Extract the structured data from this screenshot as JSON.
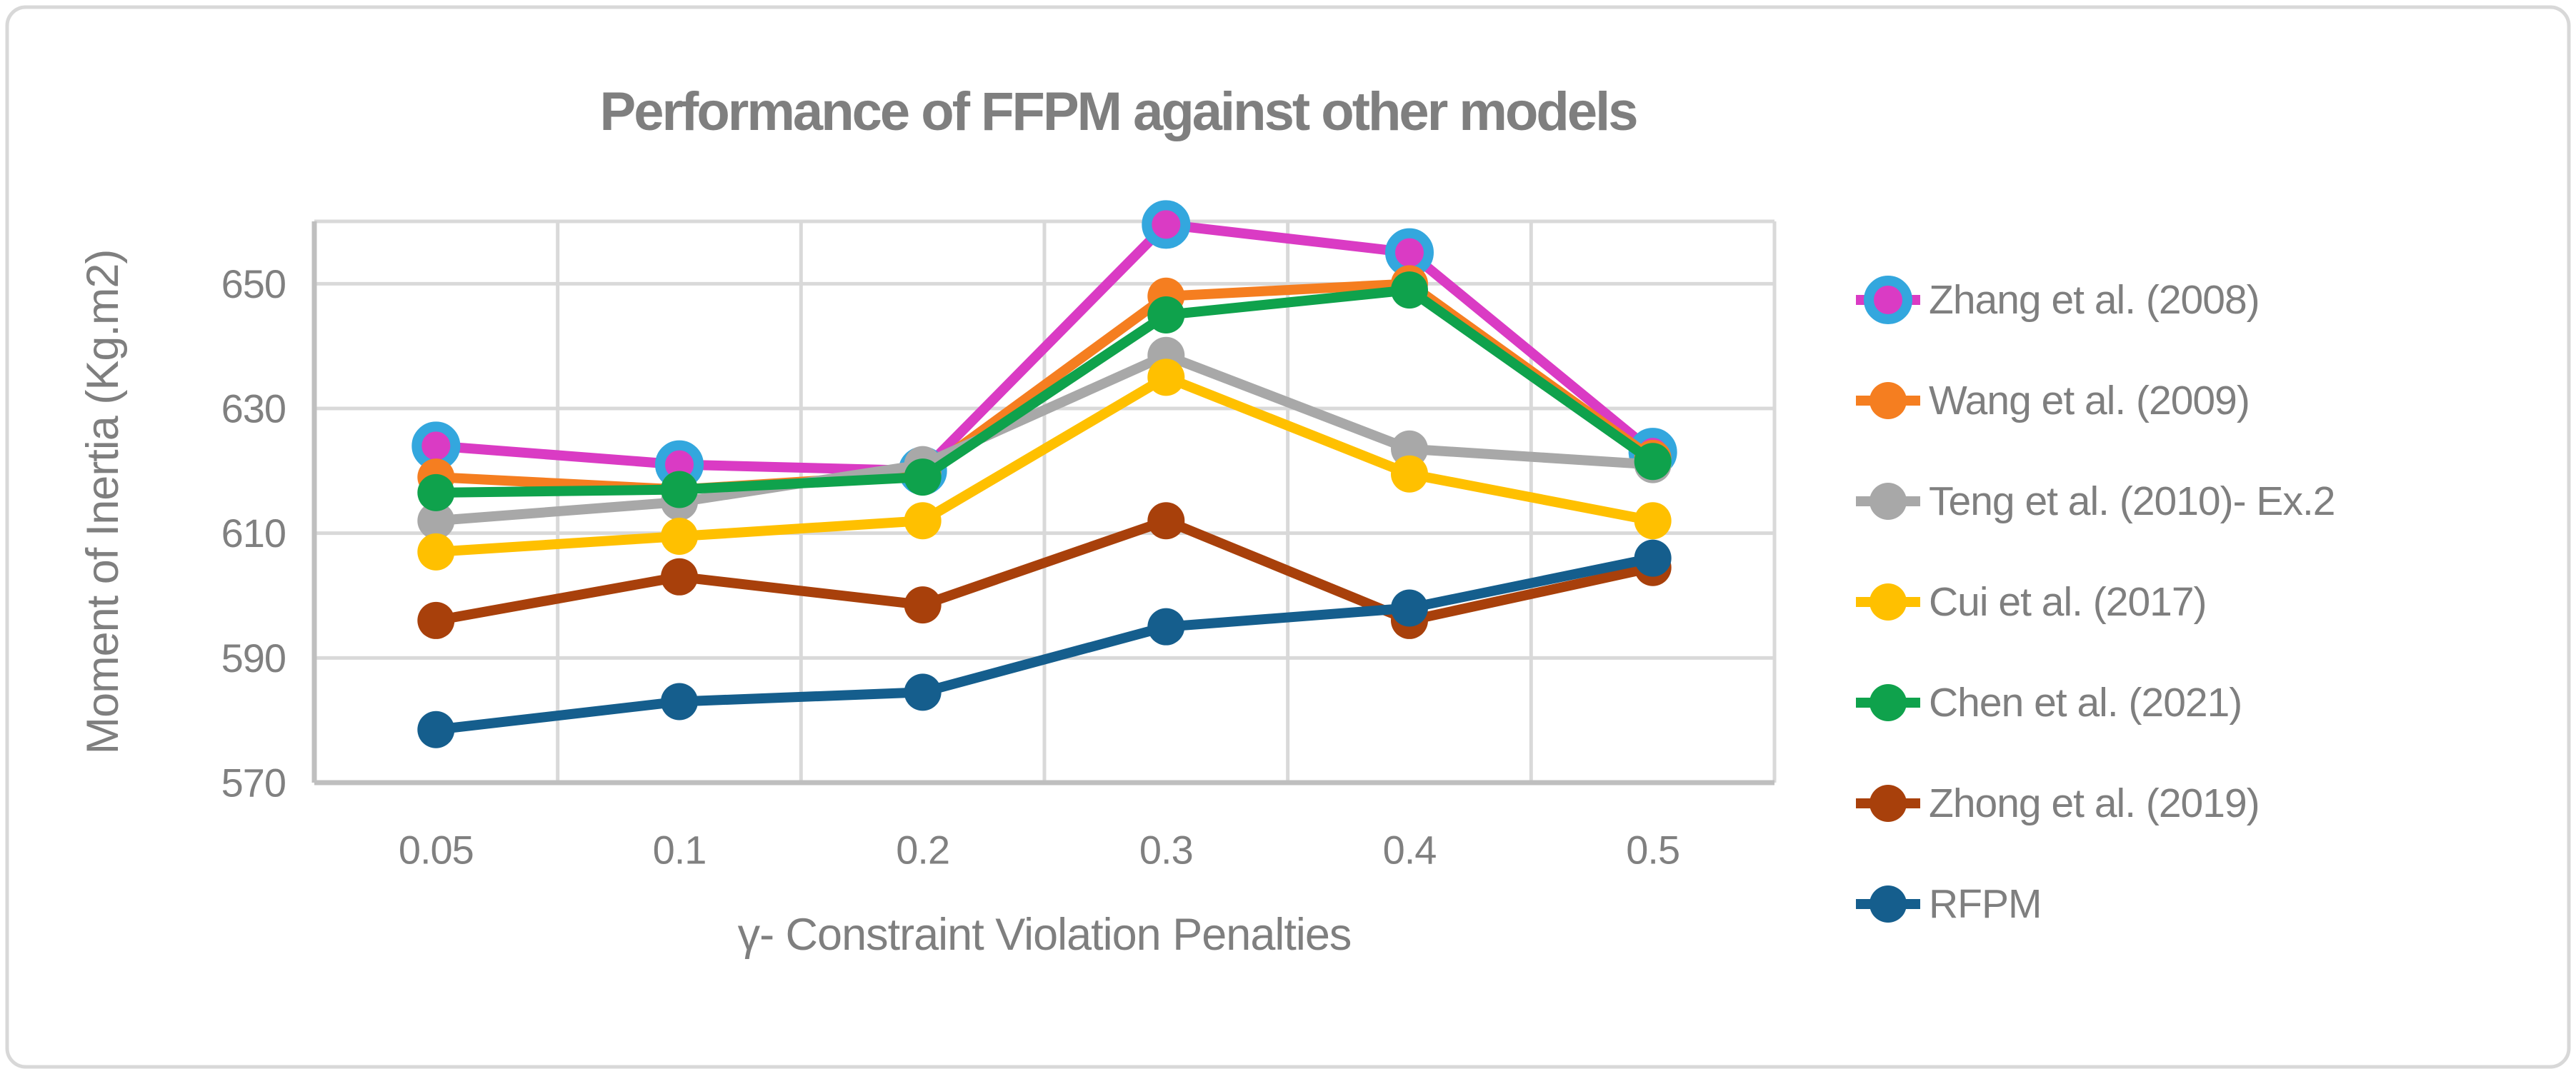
{
  "frame": {
    "background": "#FFFFFF",
    "border_color": "#D8D8D8"
  },
  "chart_data": {
    "type": "line",
    "title": "Performance of FFPM against other models",
    "xlabel": "γ- Constraint Violation Penalties",
    "ylabel": "Moment of Inertia (Kg.m2)",
    "categories": [
      "0.05",
      "0.1",
      "0.2",
      "0.3",
      "0.4",
      "0.5"
    ],
    "y_ticks": [
      570,
      590,
      610,
      630,
      650
    ],
    "ylim": [
      570,
      660
    ],
    "grid": true,
    "legend_position": "right",
    "series": [
      {
        "name": "Zhang et al. (2008)",
        "color": "#DA3BC4",
        "marker_ring": "#33A7DE",
        "values": [
          624,
          621,
          620,
          659.5,
          655,
          623
        ]
      },
      {
        "name": "Wang et al. (2009)",
        "color": "#F57E20",
        "values": [
          619,
          617,
          619.5,
          648,
          650,
          622
        ]
      },
      {
        "name": "Teng et al. (2010)- Ex.2",
        "color": "#A8A8A8",
        "values": [
          612,
          615,
          621,
          638.5,
          623.5,
          621
        ]
      },
      {
        "name": "Cui et al. (2017)",
        "color": "#FFC000",
        "values": [
          607,
          609.5,
          612,
          635,
          619.5,
          612
        ]
      },
      {
        "name": "Chen et al. (2021)",
        "color": "#0FA24C",
        "values": [
          616.5,
          617,
          619,
          645,
          649,
          621.5
        ]
      },
      {
        "name": "Zhong et al. (2019)",
        "color": "#A8400B",
        "values": [
          596,
          603,
          598.5,
          612,
          596,
          604.5
        ]
      },
      {
        "name": "RFPM",
        "color": "#155E8D",
        "values": [
          578.5,
          583,
          584.5,
          595,
          598,
          606
        ]
      }
    ],
    "styles": {
      "grid_color": "#D9D9D9",
      "axis_color": "#BFBFBF",
      "text_color": "#808080",
      "title_color": "#7F7F7F"
    }
  }
}
